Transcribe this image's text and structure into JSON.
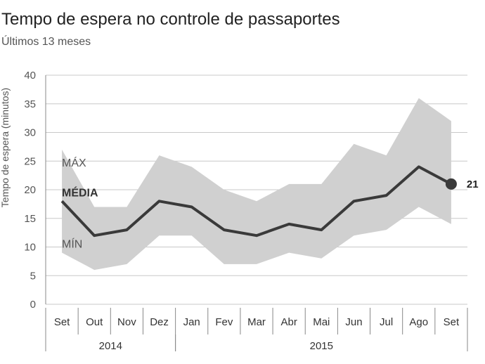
{
  "header": {
    "title": "Tempo de espera no controle de passaportes",
    "subtitle": "Últimos 13 meses"
  },
  "chart_data": {
    "type": "area",
    "title": "Tempo de espera no controle de passaportes",
    "subtitle": "Últimos 13 meses",
    "ylabel": "Tempo de espera (minutos)",
    "ylim": [
      0,
      40
    ],
    "yticks": [
      0,
      5,
      10,
      15,
      20,
      25,
      30,
      35,
      40
    ],
    "grid": true,
    "categories": [
      "Set",
      "Out",
      "Nov",
      "Dez",
      "Jan",
      "Fev",
      "Mar",
      "Abr",
      "Mai",
      "Jun",
      "Jul",
      "Ago",
      "Set"
    ],
    "years": [
      {
        "label": "2014",
        "from": 0,
        "to": 3
      },
      {
        "label": "2015",
        "from": 4,
        "to": 12
      }
    ],
    "series": [
      {
        "name": "MÁX",
        "values": [
          27,
          17,
          17,
          26,
          24,
          20,
          18,
          21,
          21,
          28,
          26,
          36,
          32
        ]
      },
      {
        "name": "MÉDIA",
        "values": [
          18,
          12,
          13,
          18,
          17,
          13,
          12,
          14,
          13,
          18,
          19,
          24,
          21
        ]
      },
      {
        "name": "MÍN",
        "values": [
          9,
          6,
          7,
          12,
          12,
          7,
          7,
          9,
          8,
          12,
          13,
          17,
          14
        ]
      }
    ],
    "end_label": "21",
    "colors": {
      "band": "#d0d0d0",
      "line": "#3a3a3a",
      "grid": "#c8c8c8",
      "axis": "#888888"
    }
  }
}
